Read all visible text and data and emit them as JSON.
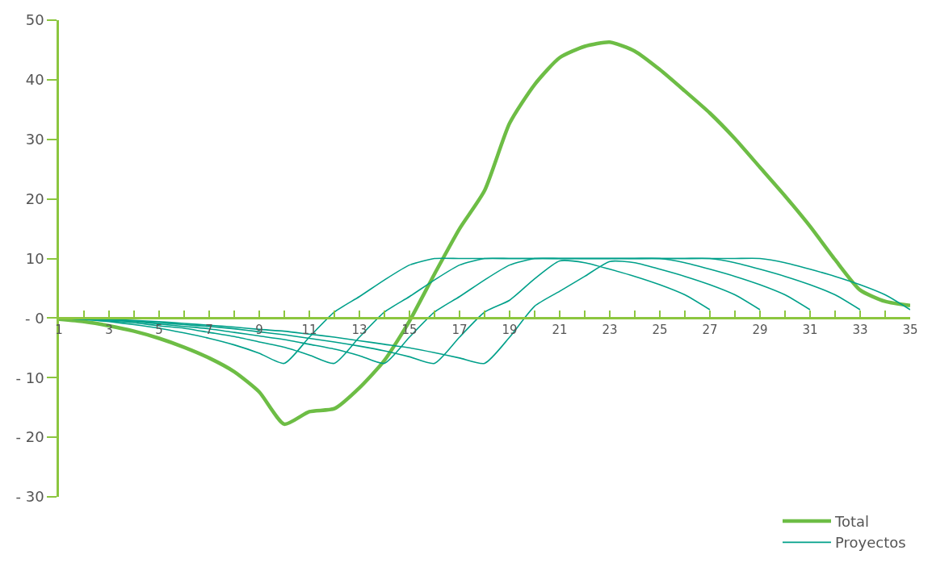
{
  "chart_data": {
    "type": "line",
    "x": [
      1,
      2,
      3,
      4,
      5,
      6,
      7,
      8,
      9,
      10,
      11,
      12,
      13,
      14,
      15,
      16,
      17,
      18,
      19,
      20,
      21,
      22,
      23,
      24,
      25,
      26,
      27,
      28,
      29,
      30,
      31,
      32,
      33,
      34,
      35
    ],
    "series": [
      {
        "name": "Total",
        "color": "#6dbd45",
        "values": [
          -0.2,
          -0.6,
          -1.3,
          -2.2,
          -3.4,
          -4.9,
          -6.7,
          -9,
          -12.4,
          -17.8,
          -15.7,
          -15.2,
          -11.7,
          -7.1,
          -0.5,
          7.4,
          15,
          21.4,
          32.7,
          39.2,
          43.7,
          45.6,
          46.3,
          44.8,
          41.7,
          38.1,
          34.4,
          30.1,
          25.3,
          20.5,
          15.4,
          9.8,
          4.7,
          2.8,
          2.1
        ]
      },
      {
        "name": "Proyectos",
        "color": "#00a08a",
        "values": [
          0,
          -0.2,
          -0.6,
          -1.1,
          -1.7,
          -2.5,
          -3.4,
          -4.5,
          -5.9,
          -7.6,
          -3.2,
          1.0,
          3.6,
          6.4,
          8.9,
          10,
          10,
          10,
          10,
          10,
          10,
          10,
          10,
          10,
          10,
          9.3,
          8.2,
          7.0,
          5.6,
          3.9,
          1.4,
          null,
          null,
          null,
          null
        ]
      },
      {
        "color": "#00a08a",
        "values": [
          0,
          -0.2,
          -0.5,
          -0.8,
          -1.3,
          -1.7,
          -2.4,
          -3.1,
          -4.0,
          -4.9,
          -6.2,
          -7.6,
          -3.2,
          1.0,
          3.6,
          6.4,
          8.9,
          10,
          10,
          10,
          10,
          10,
          10,
          10,
          10,
          10,
          10,
          9.3,
          8.2,
          7.0,
          5.6,
          3.9,
          1.4,
          null,
          null
        ]
      },
      {
        "color": "#00a08a",
        "values": [
          0,
          -0.1,
          -0.3,
          -0.6,
          -1.0,
          -1.4,
          -1.8,
          -2.4,
          -3.0,
          -3.6,
          -4.4,
          -5.2,
          -6.3,
          -7.6,
          -3.2,
          1.0,
          3.6,
          6.4,
          8.9,
          10,
          10,
          10,
          10,
          10,
          10,
          10,
          10,
          10,
          10,
          9.3,
          8.2,
          7.0,
          5.6,
          3.9,
          1.4
        ]
      },
      {
        "color": "#00a08a",
        "values": [
          0,
          -0.1,
          -0.3,
          -0.5,
          -0.8,
          -1.1,
          -1.4,
          -1.8,
          -2.3,
          -2.8,
          -3.4,
          -4.0,
          -4.7,
          -5.5,
          -6.5,
          -7.6,
          -3.2,
          1.0,
          3.0,
          6.6,
          9.6,
          9.3,
          8.2,
          7.0,
          5.6,
          3.9,
          1.4,
          null,
          null,
          null,
          null,
          null,
          null,
          null,
          null
        ]
      },
      {
        "color": "#00a08a",
        "values": [
          0,
          -0.1,
          -0.2,
          -0.4,
          -0.6,
          -0.9,
          -1.2,
          -1.5,
          -1.9,
          -2.2,
          -2.7,
          -3.2,
          -3.8,
          -4.4,
          -5.0,
          -5.8,
          -6.7,
          -7.6,
          -3.2,
          2.0,
          4.5,
          7.0,
          9.5,
          9.3,
          8.2,
          7.0,
          5.6,
          3.9,
          1.4,
          null,
          null,
          null,
          null,
          null,
          null
        ]
      }
    ],
    "xlim": [
      1,
      35
    ],
    "xticks": [
      1,
      {
        "value": 2,
        "label": null
      },
      3,
      {
        "value": 4,
        "label": null
      },
      5,
      {
        "value": 6,
        "label": null
      },
      7,
      {
        "value": 8,
        "label": null
      },
      9,
      {
        "value": 10,
        "label": null
      },
      11,
      {
        "value": 12,
        "label": null
      },
      13,
      {
        "value": 14,
        "label": null
      },
      15,
      {
        "value": 16,
        "label": null
      },
      17,
      {
        "value": 18,
        "label": null
      },
      19,
      {
        "value": 20,
        "label": null
      },
      21,
      {
        "value": 22,
        "label": null
      },
      23,
      {
        "value": 24,
        "label": null
      },
      25,
      {
        "value": 26,
        "label": null
      },
      27,
      {
        "value": 28,
        "label": null
      },
      29,
      {
        "value": 30,
        "label": null
      },
      31,
      {
        "value": 32,
        "label": null
      },
      33,
      {
        "value": 34,
        "label": null
      },
      35
    ],
    "ylim": [
      -30,
      50
    ],
    "yticks": [
      {
        "value": -30,
        "label": "- 30"
      },
      {
        "value": -20,
        "label": "- 20"
      },
      {
        "value": -10,
        "label": "- 10"
      },
      {
        "value": 0,
        "label": "- 0"
      },
      10,
      20,
      30,
      40,
      50
    ],
    "grid": false,
    "legend": "bottom right",
    "marker": "none",
    "line_style": "solid"
  }
}
